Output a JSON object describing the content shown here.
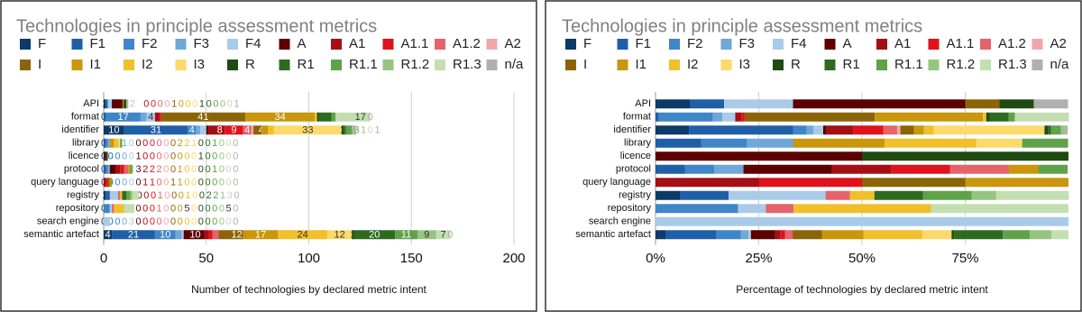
{
  "chart_data": [
    {
      "type": "bar",
      "orientation": "horizontal",
      "stacked": true,
      "grid": true,
      "title": "Technologies in principle assessment metrics",
      "xlabel": "Number of technologies by declared metric intent",
      "categories": [
        "API",
        "format",
        "identifier",
        "library",
        "licence",
        "protocol",
        "query language",
        "registry",
        "repository",
        "search engine",
        "semantic artefact"
      ],
      "xlim": [
        0,
        200
      ],
      "xticks": [
        0,
        50,
        100,
        150,
        200
      ],
      "series": [
        {
          "name": "F",
          "color": "#0d3a66",
          "values": [
            1,
            0,
            10,
            0,
            0,
            0,
            0,
            1,
            0,
            0,
            4
          ]
        },
        {
          "name": "F1",
          "color": "#1f5fa8",
          "values": [
            1,
            1,
            31,
            1,
            0,
            1,
            0,
            2,
            0,
            0,
            21
          ]
        },
        {
          "name": "F2",
          "color": "#3f86c8",
          "values": [
            0,
            17,
            4,
            1,
            0,
            1,
            0,
            0,
            3,
            0,
            10
          ]
        },
        {
          "name": "F3",
          "color": "#6fa7d9",
          "values": [
            0,
            3,
            2,
            1,
            0,
            1,
            0,
            0,
            0,
            0,
            3
          ]
        },
        {
          "name": "F4",
          "color": "#a9cbe8",
          "values": [
            2,
            4,
            3,
            0,
            0,
            0,
            0,
            4,
            1,
            3,
            1
          ]
        },
        {
          "name": "A",
          "color": "#5c0000",
          "values": [
            5,
            0,
            1,
            0,
            1,
            3,
            0,
            0,
            0,
            0,
            10
          ]
        },
        {
          "name": "A1",
          "color": "#a50f15",
          "values": [
            0,
            2,
            8,
            0,
            0,
            2,
            1,
            0,
            0,
            0,
            2
          ]
        },
        {
          "name": "A1.1",
          "color": "#e0121b",
          "values": [
            0,
            1,
            9,
            0,
            0,
            2,
            1,
            0,
            0,
            0,
            2
          ]
        },
        {
          "name": "A1.2",
          "color": "#e5636b",
          "values": [
            0,
            0,
            4,
            0,
            0,
            2,
            0,
            1,
            1,
            0,
            3
          ]
        },
        {
          "name": "A2",
          "color": "#f0a7a9",
          "values": [
            0,
            0,
            1,
            0,
            0,
            0,
            0,
            0,
            0,
            0,
            0
          ]
        },
        {
          "name": "I",
          "color": "#8c6408",
          "values": [
            1,
            41,
            4,
            0,
            0,
            0,
            1,
            0,
            0,
            0,
            12
          ]
        },
        {
          "name": "I1",
          "color": "#c9960c",
          "values": [
            0,
            34,
            3,
            2,
            0,
            1,
            1,
            0,
            0,
            0,
            17
          ]
        },
        {
          "name": "I2",
          "color": "#f0c02a",
          "values": [
            0,
            1,
            3,
            2,
            0,
            0,
            0,
            1,
            5,
            0,
            24
          ]
        },
        {
          "name": "I3",
          "color": "#fbd96b",
          "values": [
            0,
            0,
            33,
            1,
            0,
            0,
            0,
            0,
            0,
            0,
            12
          ]
        },
        {
          "name": "R",
          "color": "#1f4b12",
          "values": [
            1,
            1,
            1,
            0,
            1,
            0,
            0,
            0,
            0,
            0,
            1
          ]
        },
        {
          "name": "R1",
          "color": "#2e6b1f",
          "values": [
            0,
            6,
            1,
            0,
            0,
            0,
            0,
            2,
            0,
            0,
            20
          ]
        },
        {
          "name": "R1.1",
          "color": "#5fa24a",
          "values": [
            0,
            2,
            3,
            1,
            0,
            1,
            0,
            2,
            0,
            0,
            11
          ]
        },
        {
          "name": "R1.2",
          "color": "#95c57f",
          "values": [
            0,
            0,
            1,
            0,
            0,
            0,
            0,
            1,
            0,
            0,
            9
          ]
        },
        {
          "name": "R1.3",
          "color": "#c3dfb2",
          "values": [
            0,
            17,
            0,
            0,
            0,
            0,
            0,
            3,
            5,
            0,
            7
          ]
        },
        {
          "name": "n/a",
          "color": "#b0b0b0",
          "values": [
            1,
            0,
            1,
            0,
            0,
            0,
            0,
            0,
            0,
            0,
            0
          ]
        }
      ]
    },
    {
      "type": "bar",
      "orientation": "horizontal",
      "stacked": true,
      "grid": true,
      "title": "Technologies in principle assessment metrics",
      "xlabel": "Percentage of technologies by declared metric intent",
      "categories": [
        "API",
        "format",
        "identifier",
        "library",
        "licence",
        "protocol",
        "query language",
        "registry",
        "repository",
        "search engine",
        "semantic artefact"
      ],
      "xlim": [
        0,
        100
      ],
      "xticks": [
        {
          "value": 0,
          "label": "0%"
        },
        {
          "value": 25,
          "label": "25%"
        },
        {
          "value": 50,
          "label": "50%"
        },
        {
          "value": 75,
          "label": "75%"
        }
      ],
      "series": [
        {
          "name": "F",
          "color": "#0d3a66",
          "values": [
            8.3,
            0,
            8.1,
            0,
            0,
            0,
            0,
            5.9,
            0,
            0,
            2.4
          ]
        },
        {
          "name": "F1",
          "color": "#1f5fa8",
          "values": [
            8.3,
            0.8,
            25.2,
            11.1,
            0,
            7.1,
            0,
            11.8,
            0,
            0,
            12.4
          ]
        },
        {
          "name": "F2",
          "color": "#3f86c8",
          "values": [
            0,
            13.1,
            3.3,
            11.1,
            0,
            7.1,
            0,
            0,
            20,
            0,
            5.9
          ]
        },
        {
          "name": "F3",
          "color": "#6fa7d9",
          "values": [
            0,
            2.3,
            1.6,
            11.1,
            0,
            7.1,
            0,
            0,
            0,
            0,
            1.8
          ]
        },
        {
          "name": "F4",
          "color": "#a9cbe8",
          "values": [
            16.7,
            3.1,
            2.4,
            0,
            0,
            0,
            0,
            23.5,
            6.7,
            100,
            0.6
          ]
        },
        {
          "name": "A",
          "color": "#5c0000",
          "values": [
            41.7,
            0,
            0.8,
            0,
            50,
            21.4,
            0,
            0,
            0,
            0,
            5.9
          ]
        },
        {
          "name": "A1",
          "color": "#a50f15",
          "values": [
            0,
            1.5,
            6.5,
            0,
            0,
            14.3,
            25,
            0,
            0,
            0,
            1.2
          ]
        },
        {
          "name": "A1.1",
          "color": "#e0121b",
          "values": [
            0,
            0.8,
            7.3,
            0,
            0,
            14.3,
            25,
            0,
            0,
            0,
            1.2
          ]
        },
        {
          "name": "A1.2",
          "color": "#e5636b",
          "values": [
            0,
            0,
            3.3,
            0,
            0,
            14.3,
            0,
            5.9,
            6.7,
            0,
            1.8
          ]
        },
        {
          "name": "A2",
          "color": "#f0a7a9",
          "values": [
            0,
            0,
            0.8,
            0,
            0,
            0,
            0,
            0,
            0,
            0,
            0
          ]
        },
        {
          "name": "I",
          "color": "#8c6408",
          "values": [
            8.3,
            31.5,
            3.3,
            0,
            0,
            0,
            25,
            0,
            0,
            0,
            7.1
          ]
        },
        {
          "name": "I1",
          "color": "#c9960c",
          "values": [
            0,
            26.2,
            2.4,
            22.2,
            0,
            7.1,
            25,
            0,
            0,
            0,
            10.1
          ]
        },
        {
          "name": "I2",
          "color": "#f0c02a",
          "values": [
            0,
            0.8,
            2.4,
            22.2,
            0,
            0,
            0,
            5.9,
            33.3,
            0,
            14.2
          ]
        },
        {
          "name": "I3",
          "color": "#fbd96b",
          "values": [
            0,
            0,
            26.8,
            11.1,
            0,
            0,
            0,
            0,
            0,
            0,
            7.1
          ]
        },
        {
          "name": "R",
          "color": "#1f4b12",
          "values": [
            8.3,
            0.8,
            0.8,
            0,
            50,
            0,
            0,
            0,
            0,
            0,
            0.6
          ]
        },
        {
          "name": "R1",
          "color": "#2e6b1f",
          "values": [
            0,
            4.6,
            0.8,
            0,
            0,
            0,
            0,
            11.8,
            0,
            0,
            11.8
          ]
        },
        {
          "name": "R1.1",
          "color": "#5fa24a",
          "values": [
            0,
            1.5,
            2.4,
            11.1,
            0,
            7.1,
            0,
            11.8,
            0,
            0,
            6.5
          ]
        },
        {
          "name": "R1.2",
          "color": "#95c57f",
          "values": [
            0,
            0,
            0.8,
            0,
            0,
            0,
            0,
            5.9,
            0,
            0,
            5.3
          ]
        },
        {
          "name": "R1.3",
          "color": "#c3dfb2",
          "values": [
            0,
            13.1,
            0,
            0,
            0,
            0,
            0,
            17.6,
            33.3,
            0,
            4.1
          ]
        },
        {
          "name": "n/a",
          "color": "#b0b0b0",
          "values": [
            8.3,
            0,
            0.8,
            0,
            0,
            0,
            0,
            0,
            0,
            0,
            0
          ]
        }
      ]
    }
  ]
}
